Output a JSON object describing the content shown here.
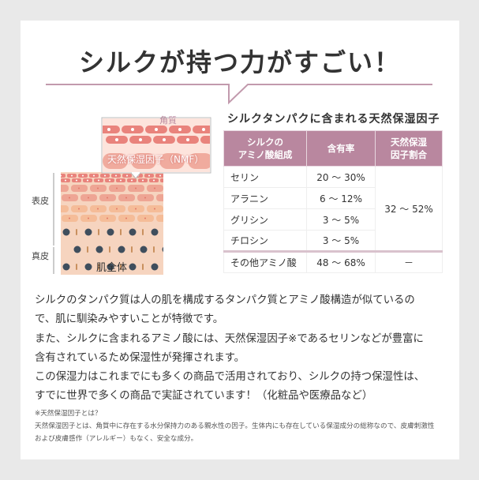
{
  "title": "シルクが持つ力がすごい！",
  "colors": {
    "accent": "#b9879f",
    "divider": "#c29aad",
    "background": "#e9e9e9"
  },
  "illustration": {
    "labels": {
      "corneum": "角質",
      "nmf": "天然保湿因子（NMF）",
      "epidermis": "表皮",
      "dermis": "真皮",
      "whole": "肌全体"
    }
  },
  "table": {
    "title": "シルクタンパクに含まれる天然保湿因子",
    "headers": [
      "シルクの\nアミノ酸組成",
      "含有率",
      "天然保湿\n因子割合"
    ],
    "rows": [
      {
        "name": "セリン",
        "rate": "20 ～ 30%"
      },
      {
        "name": "アラニン",
        "rate": "6 ～ 12%"
      },
      {
        "name": "グリシン",
        "rate": "3 ～ 5%"
      },
      {
        "name": "チロシン",
        "rate": "3 ～ 5%"
      }
    ],
    "group_ratio": "32 ～ 52%",
    "other": {
      "name": "その他アミノ酸",
      "rate": "48 ～ 68%",
      "ratio": "－"
    }
  },
  "body": [
    "シルクのタンパク質は人の肌を構成するタンパク質とアミノ酸構造が似ているの",
    "で、肌に馴染みやすいことが特徴です。",
    "また、シルクに含まれるアミノ酸には、天然保湿因子※であるセリンなどが豊富に",
    "含有されているため保湿性が発揮されます。",
    "この保湿力はこれまでにも多くの商品で活用されており、シルクの持つ保湿性は、",
    "すでに世界で多くの商品で実証されています！（化粧品や医療品など）"
  ],
  "note": [
    "※天然保湿因子とは？",
    "天然保湿因子とは、角質中に存在する水分保持力のある親水性の因子。生体内にも存在している保湿成分の総称なので、皮膚刺激性",
    "および皮膚感作（アレルギー）もなく、安全な成分。"
  ]
}
